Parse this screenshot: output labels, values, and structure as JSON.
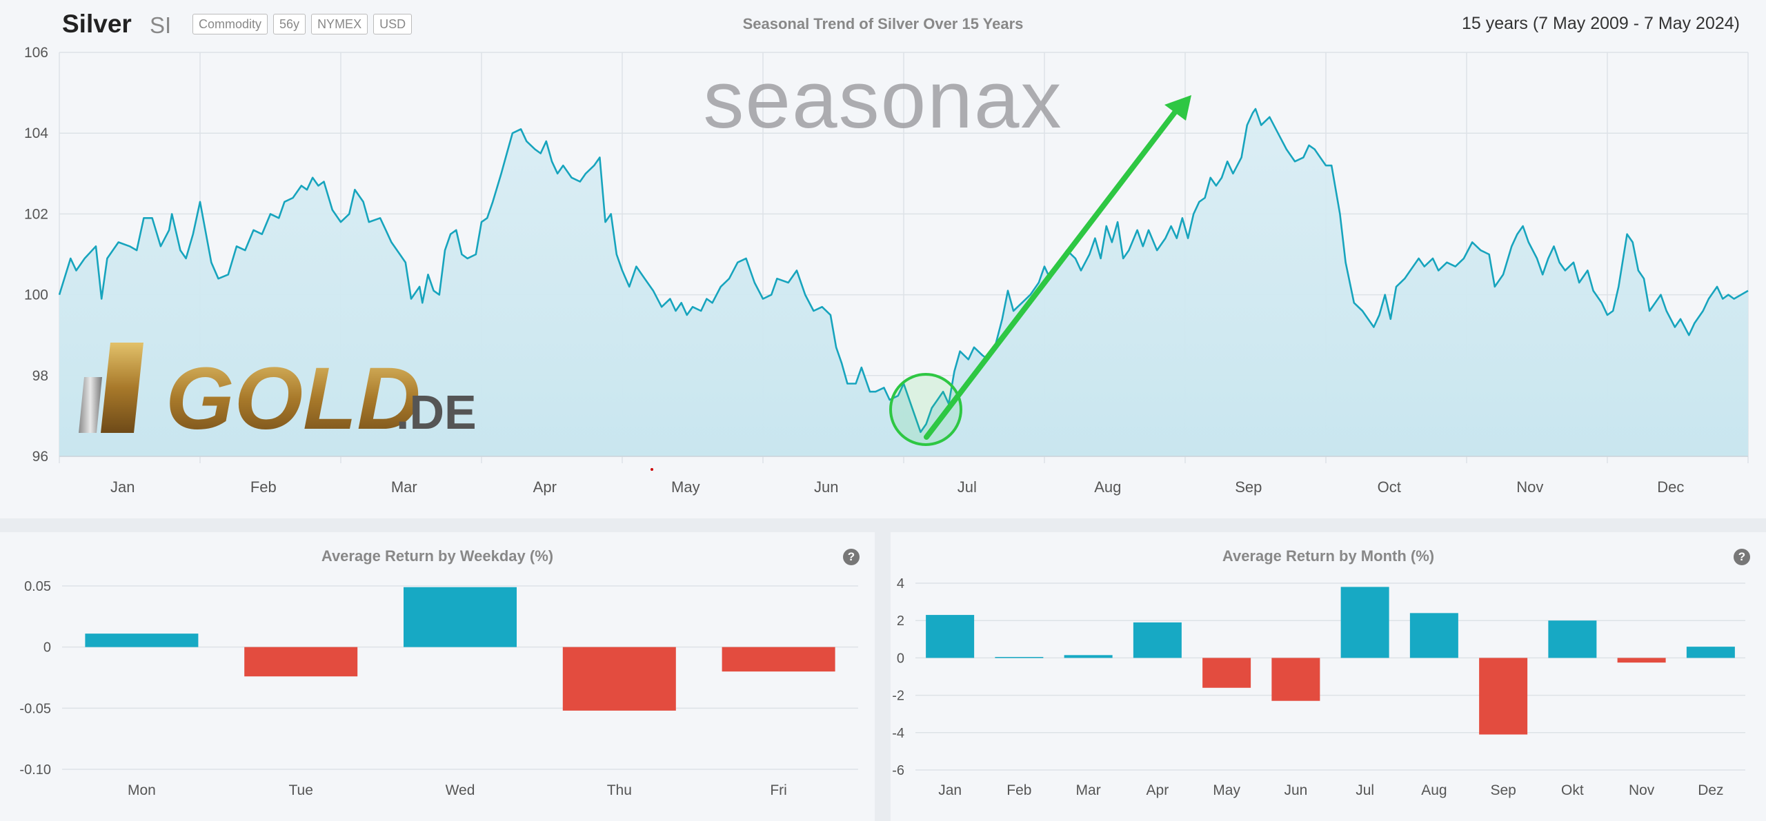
{
  "header": {
    "symbol": "Silver",
    "ticker": "SI",
    "tags": [
      "Commodity",
      "56y",
      "NYMEX",
      "USD"
    ],
    "title": "Seasonal Trend of Silver Over 15 Years",
    "range": "15 years (7 May 2009 - 7 May 2024)"
  },
  "watermark": "seasonax",
  "logo": {
    "text_main": "GOLD",
    "text_suffix": ".DE"
  },
  "colors": {
    "line": "#17a4bd",
    "positive": "#17a9c4",
    "negative": "#e34c3f",
    "arrow": "#2ec743"
  },
  "chart_data": [
    {
      "type": "line",
      "title": "Seasonal Trend of Silver Over 15 Years",
      "months": [
        "Jan",
        "Feb",
        "Mar",
        "Apr",
        "May",
        "Jun",
        "Jul",
        "Aug",
        "Sep",
        "Oct",
        "Nov",
        "Dec"
      ],
      "yticks": [
        96,
        98,
        100,
        102,
        104,
        106
      ],
      "ylim": [
        96,
        106
      ],
      "xlim": [
        0,
        12
      ],
      "x_unit": "months from 1 Jan",
      "points": [
        [
          0,
          100.0
        ],
        [
          0.08,
          100.9
        ],
        [
          0.12,
          100.6
        ],
        [
          0.18,
          100.9
        ],
        [
          0.26,
          101.2
        ],
        [
          0.3,
          99.9
        ],
        [
          0.34,
          100.9
        ],
        [
          0.42,
          101.3
        ],
        [
          0.5,
          101.2
        ],
        [
          0.55,
          101.1
        ],
        [
          0.6,
          101.9
        ],
        [
          0.66,
          101.9
        ],
        [
          0.72,
          101.2
        ],
        [
          0.78,
          101.6
        ],
        [
          0.8,
          102.0
        ],
        [
          0.86,
          101.1
        ],
        [
          0.9,
          100.9
        ],
        [
          0.95,
          101.5
        ],
        [
          1.0,
          102.3
        ],
        [
          1.08,
          100.8
        ],
        [
          1.13,
          100.4
        ],
        [
          1.2,
          100.5
        ],
        [
          1.26,
          101.2
        ],
        [
          1.32,
          101.1
        ],
        [
          1.38,
          101.6
        ],
        [
          1.44,
          101.5
        ],
        [
          1.5,
          102.0
        ],
        [
          1.56,
          101.9
        ],
        [
          1.6,
          102.3
        ],
        [
          1.66,
          102.4
        ],
        [
          1.72,
          102.7
        ],
        [
          1.76,
          102.6
        ],
        [
          1.8,
          102.9
        ],
        [
          1.84,
          102.7
        ],
        [
          1.88,
          102.8
        ],
        [
          1.94,
          102.1
        ],
        [
          2.0,
          101.8
        ],
        [
          2.06,
          102.0
        ],
        [
          2.1,
          102.6
        ],
        [
          2.16,
          102.3
        ],
        [
          2.2,
          101.8
        ],
        [
          2.28,
          101.9
        ],
        [
          2.32,
          101.6
        ],
        [
          2.36,
          101.3
        ],
        [
          2.42,
          101.0
        ],
        [
          2.46,
          100.8
        ],
        [
          2.5,
          99.9
        ],
        [
          2.56,
          100.2
        ],
        [
          2.58,
          99.8
        ],
        [
          2.62,
          100.5
        ],
        [
          2.66,
          100.1
        ],
        [
          2.7,
          100.0
        ],
        [
          2.74,
          101.1
        ],
        [
          2.78,
          101.5
        ],
        [
          2.82,
          101.6
        ],
        [
          2.86,
          101.0
        ],
        [
          2.9,
          100.9
        ],
        [
          2.96,
          101.0
        ],
        [
          3.0,
          101.8
        ],
        [
          3.04,
          101.9
        ],
        [
          3.08,
          102.3
        ],
        [
          3.14,
          103.0
        ],
        [
          3.18,
          103.5
        ],
        [
          3.22,
          104.0
        ],
        [
          3.28,
          104.1
        ],
        [
          3.32,
          103.8
        ],
        [
          3.38,
          103.6
        ],
        [
          3.42,
          103.5
        ],
        [
          3.46,
          103.8
        ],
        [
          3.5,
          103.3
        ],
        [
          3.54,
          103.0
        ],
        [
          3.58,
          103.2
        ],
        [
          3.64,
          102.9
        ],
        [
          3.7,
          102.8
        ],
        [
          3.74,
          103.0
        ],
        [
          3.8,
          103.2
        ],
        [
          3.84,
          103.4
        ],
        [
          3.88,
          101.8
        ],
        [
          3.92,
          102.0
        ],
        [
          3.96,
          101.0
        ],
        [
          4.0,
          100.6
        ],
        [
          4.05,
          100.2
        ],
        [
          4.1,
          100.7
        ],
        [
          4.16,
          100.4
        ],
        [
          4.22,
          100.1
        ],
        [
          4.28,
          99.7
        ],
        [
          4.34,
          99.9
        ],
        [
          4.38,
          99.6
        ],
        [
          4.42,
          99.8
        ],
        [
          4.46,
          99.5
        ],
        [
          4.5,
          99.7
        ],
        [
          4.56,
          99.6
        ],
        [
          4.6,
          99.9
        ],
        [
          4.64,
          99.8
        ],
        [
          4.7,
          100.2
        ],
        [
          4.76,
          100.4
        ],
        [
          4.82,
          100.8
        ],
        [
          4.88,
          100.9
        ],
        [
          4.94,
          100.3
        ],
        [
          5.0,
          99.9
        ],
        [
          5.06,
          100.0
        ],
        [
          5.1,
          100.4
        ],
        [
          5.18,
          100.3
        ],
        [
          5.24,
          100.6
        ],
        [
          5.3,
          100.0
        ],
        [
          5.36,
          99.6
        ],
        [
          5.42,
          99.7
        ],
        [
          5.48,
          99.5
        ],
        [
          5.52,
          98.7
        ],
        [
          5.56,
          98.3
        ],
        [
          5.6,
          97.8
        ],
        [
          5.66,
          97.8
        ],
        [
          5.7,
          98.2
        ],
        [
          5.76,
          97.6
        ],
        [
          5.8,
          97.6
        ],
        [
          5.86,
          97.7
        ],
        [
          5.9,
          97.4
        ],
        [
          5.96,
          97.5
        ],
        [
          6.0,
          97.8
        ],
        [
          6.06,
          97.2
        ],
        [
          6.12,
          96.6
        ],
        [
          6.16,
          96.8
        ],
        [
          6.2,
          97.2
        ],
        [
          6.24,
          97.4
        ],
        [
          6.28,
          97.6
        ],
        [
          6.32,
          97.3
        ],
        [
          6.36,
          98.1
        ],
        [
          6.4,
          98.6
        ],
        [
          6.46,
          98.4
        ],
        [
          6.5,
          98.7
        ],
        [
          6.56,
          98.5
        ],
        [
          6.6,
          98.4
        ],
        [
          6.64,
          98.6
        ],
        [
          6.7,
          99.4
        ],
        [
          6.74,
          100.1
        ],
        [
          6.78,
          99.6
        ],
        [
          6.84,
          99.8
        ],
        [
          6.9,
          100.0
        ],
        [
          6.96,
          100.3
        ],
        [
          7.0,
          100.7
        ],
        [
          7.04,
          100.4
        ],
        [
          7.1,
          100.8
        ],
        [
          7.16,
          101.1
        ],
        [
          7.22,
          100.9
        ],
        [
          7.26,
          100.6
        ],
        [
          7.32,
          101.0
        ],
        [
          7.36,
          101.4
        ],
        [
          7.4,
          100.9
        ],
        [
          7.44,
          101.7
        ],
        [
          7.48,
          101.3
        ],
        [
          7.52,
          101.8
        ],
        [
          7.56,
          100.9
        ],
        [
          7.6,
          101.1
        ],
        [
          7.66,
          101.6
        ],
        [
          7.7,
          101.2
        ],
        [
          7.74,
          101.6
        ],
        [
          7.8,
          101.1
        ],
        [
          7.86,
          101.4
        ],
        [
          7.9,
          101.7
        ],
        [
          7.94,
          101.4
        ],
        [
          7.98,
          101.9
        ],
        [
          8.02,
          101.4
        ],
        [
          8.06,
          102.0
        ],
        [
          8.1,
          102.3
        ],
        [
          8.14,
          102.4
        ],
        [
          8.18,
          102.9
        ],
        [
          8.22,
          102.7
        ],
        [
          8.26,
          102.9
        ],
        [
          8.3,
          103.3
        ],
        [
          8.34,
          103.0
        ],
        [
          8.4,
          103.4
        ],
        [
          8.44,
          104.2
        ],
        [
          8.48,
          104.5
        ],
        [
          8.5,
          104.6
        ],
        [
          8.54,
          104.2
        ],
        [
          8.6,
          104.4
        ],
        [
          8.66,
          104.0
        ],
        [
          8.72,
          103.6
        ],
        [
          8.78,
          103.3
        ],
        [
          8.84,
          103.4
        ],
        [
          8.88,
          103.7
        ],
        [
          8.92,
          103.6
        ],
        [
          8.96,
          103.4
        ],
        [
          9.0,
          103.2
        ],
        [
          9.04,
          103.2
        ],
        [
          9.1,
          102.0
        ],
        [
          9.14,
          100.8
        ],
        [
          9.2,
          99.8
        ],
        [
          9.26,
          99.6
        ],
        [
          9.3,
          99.4
        ],
        [
          9.34,
          99.2
        ],
        [
          9.38,
          99.5
        ],
        [
          9.42,
          100.0
        ],
        [
          9.46,
          99.4
        ],
        [
          9.5,
          100.2
        ],
        [
          9.56,
          100.4
        ],
        [
          9.6,
          100.6
        ],
        [
          9.66,
          100.9
        ],
        [
          9.7,
          100.7
        ],
        [
          9.76,
          100.9
        ],
        [
          9.8,
          100.6
        ],
        [
          9.86,
          100.8
        ],
        [
          9.92,
          100.7
        ],
        [
          9.98,
          100.9
        ],
        [
          10.04,
          101.3
        ],
        [
          10.1,
          101.1
        ],
        [
          10.16,
          101.0
        ],
        [
          10.2,
          100.2
        ],
        [
          10.26,
          100.5
        ],
        [
          10.32,
          101.2
        ],
        [
          10.36,
          101.5
        ],
        [
          10.4,
          101.7
        ],
        [
          10.44,
          101.3
        ],
        [
          10.5,
          100.9
        ],
        [
          10.54,
          100.5
        ],
        [
          10.58,
          100.9
        ],
        [
          10.62,
          101.2
        ],
        [
          10.66,
          100.8
        ],
        [
          10.7,
          100.6
        ],
        [
          10.76,
          100.8
        ],
        [
          10.8,
          100.3
        ],
        [
          10.86,
          100.6
        ],
        [
          10.9,
          100.1
        ],
        [
          10.96,
          99.8
        ],
        [
          11.0,
          99.5
        ],
        [
          11.04,
          99.6
        ],
        [
          11.08,
          100.2
        ],
        [
          11.14,
          101.5
        ],
        [
          11.18,
          101.3
        ],
        [
          11.22,
          100.6
        ],
        [
          11.26,
          100.4
        ],
        [
          11.3,
          99.6
        ],
        [
          11.34,
          99.8
        ],
        [
          11.38,
          100.0
        ],
        [
          11.42,
          99.6
        ],
        [
          11.48,
          99.2
        ],
        [
          11.52,
          99.4
        ],
        [
          11.58,
          99.0
        ],
        [
          11.62,
          99.3
        ],
        [
          11.68,
          99.6
        ],
        [
          11.72,
          99.9
        ],
        [
          11.78,
          100.2
        ],
        [
          11.82,
          99.9
        ],
        [
          11.86,
          100.0
        ],
        [
          11.9,
          99.9
        ],
        [
          12.0,
          100.1
        ]
      ]
    },
    {
      "type": "bar",
      "title": "Average Return by Weekday (%)",
      "categories": [
        "Mon",
        "Tue",
        "Wed",
        "Thu",
        "Fri"
      ],
      "values": [
        0.011,
        -0.024,
        0.049,
        -0.052,
        -0.02
      ],
      "yticks": [
        0.05,
        0,
        -0.05,
        -0.1
      ],
      "ytick_labels": [
        "0.05",
        "0",
        "-0.05",
        "-0.10"
      ],
      "ylim": [
        -0.1,
        0.05
      ]
    },
    {
      "type": "bar",
      "title": "Average Return by Month (%)",
      "categories": [
        "Jan",
        "Feb",
        "Mar",
        "Apr",
        "May",
        "Jun",
        "Jul",
        "Aug",
        "Sep",
        "Okt",
        "Nov",
        "Dez"
      ],
      "values": [
        2.3,
        0.05,
        0.15,
        1.9,
        -1.6,
        -2.3,
        3.8,
        2.4,
        -4.1,
        2.0,
        -0.25,
        0.6
      ],
      "yticks": [
        4,
        2,
        0,
        -2,
        -4,
        -6
      ],
      "ylim": [
        -6,
        4
      ]
    }
  ]
}
